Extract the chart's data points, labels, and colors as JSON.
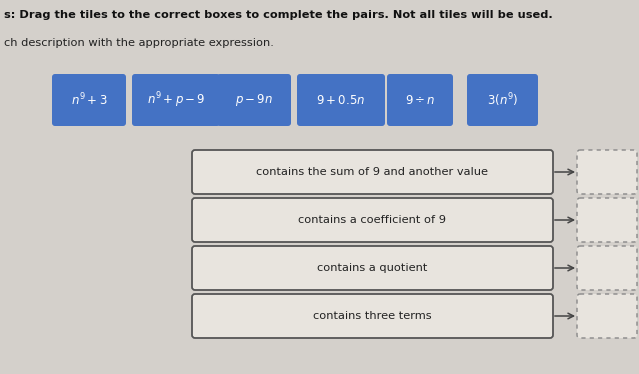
{
  "title_line1": "s: Drag the tiles to the correct boxes to complete the pairs. Not all tiles will be used.",
  "title_line2": "ch description with the appropriate expression.",
  "bg_color": "#d4d0cb",
  "tile_bg_color": "#4472c4",
  "tile_text_color": "#ffffff",
  "tiles": [
    {
      "label": "$n^9+3$"
    },
    {
      "label": "$n^9+p-9$"
    },
    {
      "label": "$p-9n$"
    },
    {
      "label": "$9+0.5n$"
    },
    {
      "label": "$9\\div n$"
    },
    {
      "label": "$3(n^9)$"
    }
  ],
  "descriptions": [
    "contains the sum of 9 and another value",
    "contains a coefficient of 9",
    "contains a quotient",
    "contains three terms"
  ],
  "desc_box_bg": "#e8e4de",
  "desc_box_border": "#555555",
  "answer_box_bg": "#e8e4de",
  "answer_box_border": "#aaaaaa"
}
